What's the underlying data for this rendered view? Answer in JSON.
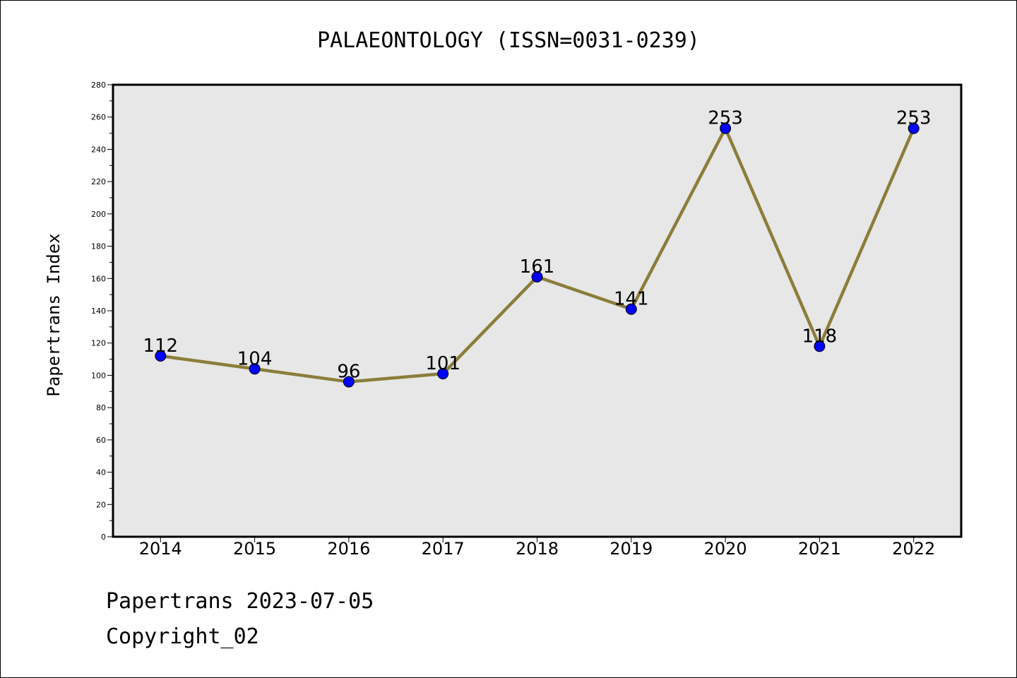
{
  "chart_data": {
    "type": "line",
    "title": "PALAEONTOLOGY (ISSN=0031-0239)",
    "ylabel": "Papertrans Index",
    "xlabel": "",
    "categories": [
      "2014",
      "2015",
      "2016",
      "2017",
      "2018",
      "2019",
      "2020",
      "2021",
      "2022"
    ],
    "series": [
      {
        "values": [
          112,
          104,
          96,
          101,
          161,
          141,
          253,
          118,
          253
        ]
      }
    ],
    "ylim": [
      0,
      280
    ],
    "yticks": [
      0,
      20,
      40,
      60,
      80,
      100,
      120,
      140,
      160,
      180,
      200,
      220,
      240,
      260,
      280
    ],
    "grid": false,
    "data_labels": true,
    "colors": {
      "line": "#8B7D3A",
      "marker": "#0000FF",
      "plot_background": "#E7E7E7"
    }
  },
  "footer": {
    "line1": "Papertrans 2023-07-05",
    "line2": "Copyright_02"
  }
}
